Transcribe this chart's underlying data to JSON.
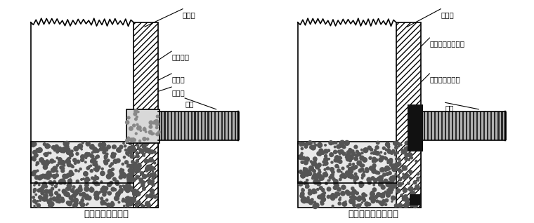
{
  "bg_color": "#ffffff",
  "line_color": "#000000",
  "title1": "管道与检查井连接",
  "title2": "管道与检查井连接．",
  "label1_1": "检查井",
  "label1_2": "水泥砂浆",
  "label1_3": "素灰浆",
  "label1_4": "中介层",
  "label1_5": "管材",
  "label2_1": "检查井",
  "label2_2": "自膨胀密封橡胶圈",
  "label2_3": "圈梁专用灌浆料",
  "label2_4": "管材",
  "font_size_label": 7.5,
  "font_size_title": 9.5,
  "pipe_dark": "#2a2a2a",
  "pipe_light": "#b0b0b0",
  "wall_hatch_color": "#555555",
  "footing_color": "#e8e8e8",
  "mortar_color": "#cccccc"
}
